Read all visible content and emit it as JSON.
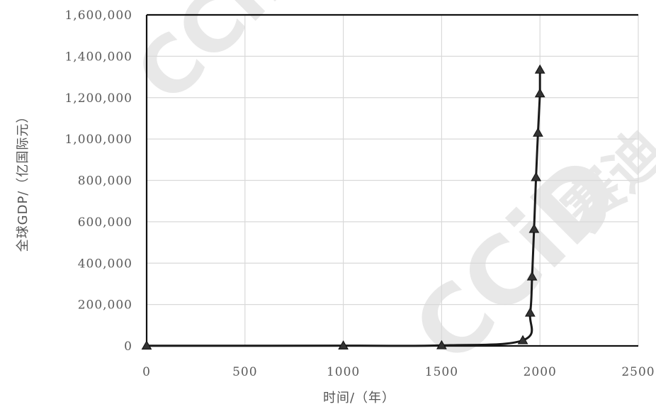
{
  "watermark": {
    "text": "CCiD",
    "text2": "赛迪"
  },
  "chart_data": {
    "type": "line",
    "xlabel": "时间/（年）",
    "ylabel": "全球GDP/（亿国际元）",
    "xlim": [
      0,
      2500
    ],
    "ylim": [
      0,
      1600000
    ],
    "x_ticks": [
      0,
      500,
      1000,
      1500,
      2000,
      2500
    ],
    "y_ticks": [
      0,
      200000,
      400000,
      600000,
      800000,
      1000000,
      1200000,
      1400000,
      1600000
    ],
    "x_tick_labels": [
      "0",
      "500",
      "1000",
      "1500",
      "2000",
      "2500"
    ],
    "y_tick_labels": [
      "0",
      "200,000",
      "400,000",
      "600,000",
      "800,000",
      "1,000,000",
      "1,200,000",
      "1,400,000",
      "1,600,000"
    ],
    "grid": true,
    "marker": "triangle",
    "line_color": "#1a1a1a",
    "series": [
      {
        "x": [
          0,
          1000,
          1500,
          1913,
          1950,
          1960,
          1970,
          1980,
          1990,
          2000
        ],
        "y": [
          1000,
          1200,
          2500,
          27000,
          160000,
          335000,
          565000,
          815000,
          1030000,
          1220000
        ]
      }
    ],
    "extra_point": {
      "x": 2000,
      "y": 1335000
    }
  }
}
